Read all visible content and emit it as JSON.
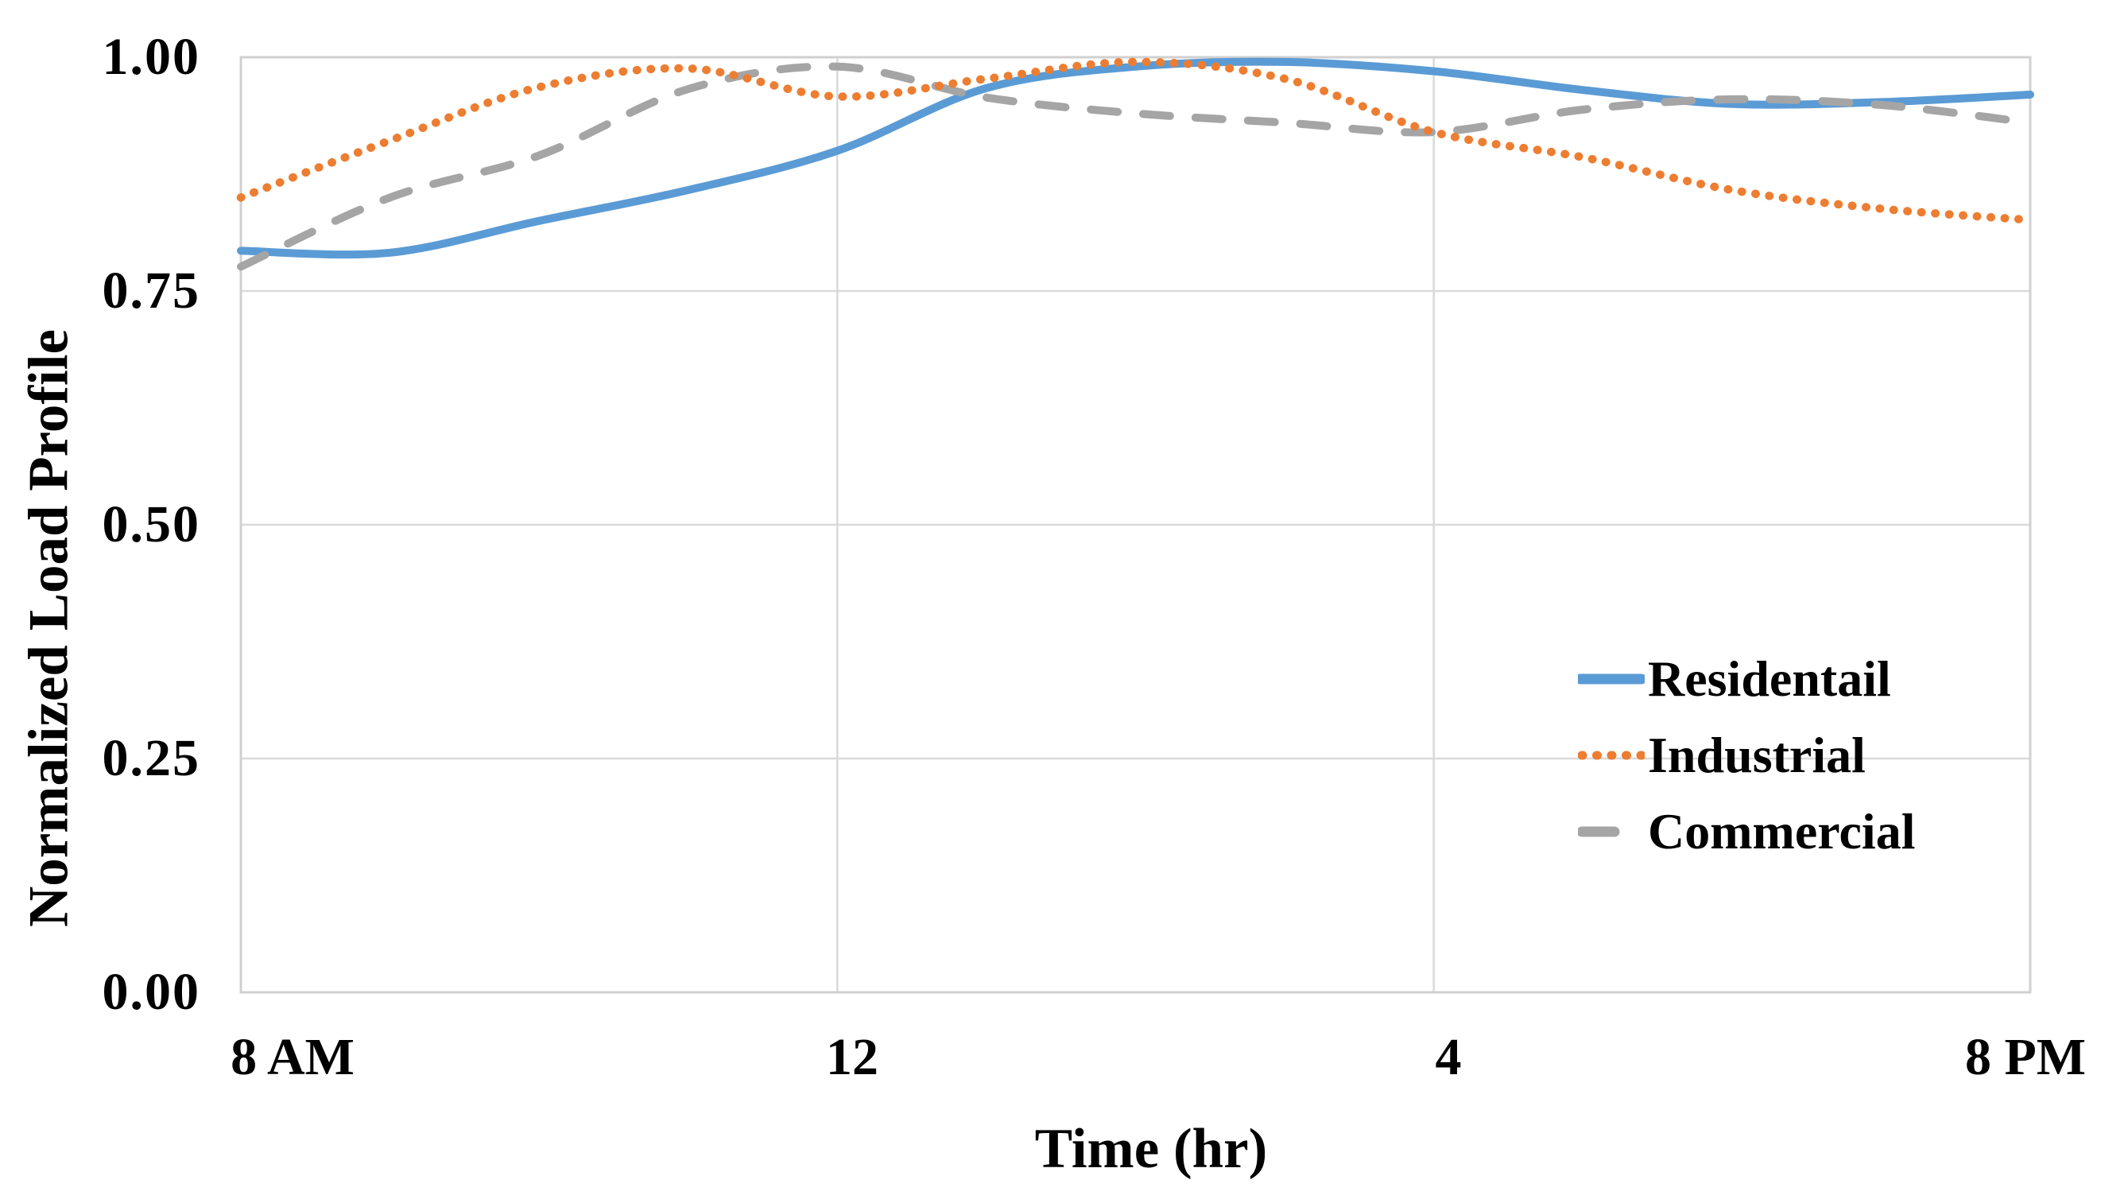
{
  "chart_data": {
    "type": "line",
    "title": "",
    "xlabel": "Time (hr)",
    "ylabel": "Normalized Load Profile",
    "xlim_hours": [
      8,
      20
    ],
    "ylim": [
      0.0,
      1.0
    ],
    "grid": "horizontal at y ticks; vertical at 12 and 4",
    "vgrid_hours": [
      12,
      16
    ],
    "legend_position": "inside-right",
    "x_hours": [
      8,
      9,
      10,
      11,
      12,
      13,
      14,
      15,
      16,
      17,
      18,
      19,
      20
    ],
    "x_ticks": [
      {
        "label": "8 AM",
        "hour": 8
      },
      {
        "label": "12",
        "hour": 12
      },
      {
        "label": "4",
        "hour": 16
      },
      {
        "label": "8 PM",
        "hour": 20
      }
    ],
    "y_ticks": [
      {
        "label": "1.00",
        "value": 1.0,
        "grid": false
      },
      {
        "label": "0.75",
        "value": 0.75,
        "grid": true
      },
      {
        "label": "0.50",
        "value": 0.5,
        "grid": true
      },
      {
        "label": "0.25",
        "value": 0.25,
        "grid": true
      },
      {
        "label": "0.00",
        "value": 0.0,
        "grid": false
      }
    ],
    "series": [
      {
        "name": "Residentail",
        "color": "#5B9BD5",
        "style": "solid",
        "values": [
          0.793,
          0.791,
          0.825,
          0.858,
          0.9,
          0.967,
          0.99,
          0.995,
          0.985,
          0.965,
          0.95,
          0.952,
          0.96
        ]
      },
      {
        "name": "Industrial",
        "color": "#ED7D31",
        "style": "dotted",
        "values": [
          0.85,
          0.911,
          0.968,
          0.988,
          0.958,
          0.977,
          0.995,
          0.977,
          0.92,
          0.893,
          0.858,
          0.838,
          0.826
        ]
      },
      {
        "name": "Commercial",
        "color": "#A5A5A5",
        "style": "dashed",
        "values": [
          0.776,
          0.85,
          0.895,
          0.966,
          0.99,
          0.957,
          0.94,
          0.93,
          0.92,
          0.944,
          0.955,
          0.949,
          0.93
        ]
      }
    ],
    "colors": {
      "gridline": "#D9D9D9",
      "plot_border": "#D0D0D0",
      "text": "#000000",
      "background": "#FFFFFF"
    }
  }
}
